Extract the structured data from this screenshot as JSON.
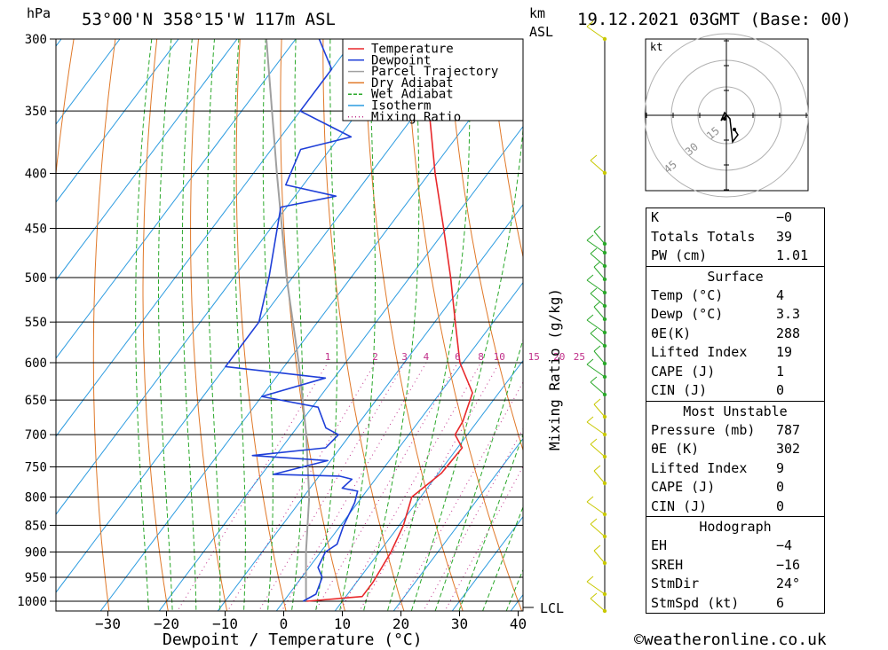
{
  "header": {
    "pressure_unit": "hPa",
    "location": "53°00'N  358°15'W  117m  ASL",
    "height_unit": "km",
    "height_ref": "ASL",
    "datetime": "19.12.2021  03GMT  (Base: 00)"
  },
  "footer": {
    "copyright": "©weatheronline.co.uk"
  },
  "chart_data": {
    "type": "skew-t",
    "xlabel": "Dewpoint / Temperature (°C)",
    "ylabel": "hPa",
    "mixing_ratio_axis_label": "Mixing Ratio (g/kg)",
    "x_ticks": [
      -30,
      -20,
      -10,
      0,
      10,
      20,
      30,
      40
    ],
    "x_tick_labels": [
      "−30",
      "−20",
      "−10",
      "0",
      "10",
      "20",
      "30",
      "40"
    ],
    "pressure_levels": [
      300,
      350,
      400,
      450,
      500,
      550,
      600,
      650,
      700,
      750,
      800,
      850,
      900,
      950,
      1000
    ],
    "pressure_labels": [
      "300",
      "350",
      "400",
      "450",
      "500",
      "550",
      "600",
      "650",
      "700",
      "750",
      "800",
      "850",
      "900",
      "950",
      "1000"
    ],
    "mixing_ratio_labels": [
      "1",
      "2",
      "3",
      "4",
      "6",
      "8",
      "10",
      "15",
      "20",
      "25"
    ],
    "lcl_label": "LCL",
    "legend": [
      {
        "name": "Temperature",
        "color": "#e8282b"
      },
      {
        "name": "Dewpoint",
        "color": "#1f3fd8"
      },
      {
        "name": "Parcel Trajectory",
        "color": "#a0a0a0"
      },
      {
        "name": "Dry Adiabat",
        "color": "#e07828"
      },
      {
        "name": "Wet Adiabat",
        "color": "#2aa82a"
      },
      {
        "name": "Isotherm",
        "color": "#2c9be0"
      },
      {
        "name": "Mixing Ratio",
        "color": "#c0308a"
      }
    ],
    "temperature": [
      {
        "p": 1000,
        "t": 3.9
      },
      {
        "p": 990,
        "t": 12.8
      },
      {
        "p": 960,
        "t": 12.8
      },
      {
        "p": 900,
        "t": 12.0
      },
      {
        "p": 850,
        "t": 10.7
      },
      {
        "p": 800,
        "t": 8.5
      },
      {
        "p": 760,
        "t": 10.5
      },
      {
        "p": 720,
        "t": 10.8
      },
      {
        "p": 700,
        "t": 7.9
      },
      {
        "p": 680,
        "t": 7.5
      },
      {
        "p": 640,
        "t": 5.5
      },
      {
        "p": 600,
        "t": -0.5
      },
      {
        "p": 550,
        "t": -6.5
      },
      {
        "p": 500,
        "t": -13.0
      },
      {
        "p": 450,
        "t": -20.5
      },
      {
        "p": 400,
        "t": -29.0
      },
      {
        "p": 350,
        "t": -38.0
      },
      {
        "p": 300,
        "t": -48.0
      }
    ],
    "dewpoint": [
      {
        "p": 1000,
        "t": 3.3
      },
      {
        "p": 985,
        "t": 4.6
      },
      {
        "p": 950,
        "t": 3.5
      },
      {
        "p": 930,
        "t": 1.5
      },
      {
        "p": 900,
        "t": 0.8
      },
      {
        "p": 885,
        "t": 1.8
      },
      {
        "p": 850,
        "t": 0.5
      },
      {
        "p": 810,
        "t": -0.5
      },
      {
        "p": 790,
        "t": -1.5
      },
      {
        "p": 785,
        "t": -4.5
      },
      {
        "p": 770,
        "t": -4.0
      },
      {
        "p": 765,
        "t": -6.5
      },
      {
        "p": 762,
        "t": -18.0
      },
      {
        "p": 740,
        "t": -10.5
      },
      {
        "p": 732,
        "t": -24.0
      },
      {
        "p": 720,
        "t": -12.5
      },
      {
        "p": 700,
        "t": -12.0
      },
      {
        "p": 690,
        "t": -15.0
      },
      {
        "p": 660,
        "t": -19.0
      },
      {
        "p": 645,
        "t": -30.0
      },
      {
        "p": 620,
        "t": -21.5
      },
      {
        "p": 605,
        "t": -40.0
      },
      {
        "p": 550,
        "t": -40.0
      },
      {
        "p": 500,
        "t": -44.0
      },
      {
        "p": 430,
        "t": -51.0
      },
      {
        "p": 420,
        "t": -43.0
      },
      {
        "p": 410,
        "t": -53.0
      },
      {
        "p": 380,
        "t": -55.0
      },
      {
        "p": 370,
        "t": -48.0
      },
      {
        "p": 350,
        "t": -60.0
      },
      {
        "p": 320,
        "t": -60.0
      },
      {
        "p": 300,
        "t": -66.0
      }
    ],
    "parcel": [
      {
        "p": 1000,
        "t": 3.9
      },
      {
        "p": 990,
        "t": 3.2
      },
      {
        "p": 900,
        "t": -2.5
      },
      {
        "p": 800,
        "t": -9.0
      },
      {
        "p": 700,
        "t": -17.5
      },
      {
        "p": 600,
        "t": -28.0
      },
      {
        "p": 500,
        "t": -41.0
      },
      {
        "p": 400,
        "t": -56.0
      },
      {
        "p": 300,
        "t": -75.0
      }
    ]
  },
  "hodograph": {
    "unit_label": "kt",
    "ring_labels": [
      "15",
      "30",
      "45"
    ]
  },
  "indices": {
    "rows": [
      {
        "label": "K",
        "value": "−0"
      },
      {
        "label": "Totals Totals",
        "value": "39"
      },
      {
        "label": "PW (cm)",
        "value": "1.01"
      }
    ]
  },
  "surface": {
    "title": "Surface",
    "rows": [
      {
        "label": "Temp (°C)",
        "value": "4"
      },
      {
        "label": "Dewp (°C)",
        "value": "3.3"
      },
      {
        "label": "θE(K)",
        "value": "288"
      },
      {
        "label": "Lifted Index",
        "value": "19"
      },
      {
        "label": "CAPE (J)",
        "value": "1"
      },
      {
        "label": "CIN (J)",
        "value": "0"
      }
    ]
  },
  "most_unstable": {
    "title": "Most Unstable",
    "rows": [
      {
        "label": "Pressure (mb)",
        "value": "787"
      },
      {
        "label": "θE (K)",
        "value": "302"
      },
      {
        "label": "Lifted Index",
        "value": "9"
      },
      {
        "label": "CAPE (J)",
        "value": "0"
      },
      {
        "label": "CIN (J)",
        "value": "0"
      }
    ]
  },
  "hodograph_params": {
    "title": "Hodograph",
    "rows": [
      {
        "label": "EH",
        "value": "−4"
      },
      {
        "label": "SREH",
        "value": "−16"
      },
      {
        "label": "StmDir",
        "value": "24°"
      },
      {
        "label": "StmSpd (kt)",
        "value": "6"
      }
    ]
  }
}
